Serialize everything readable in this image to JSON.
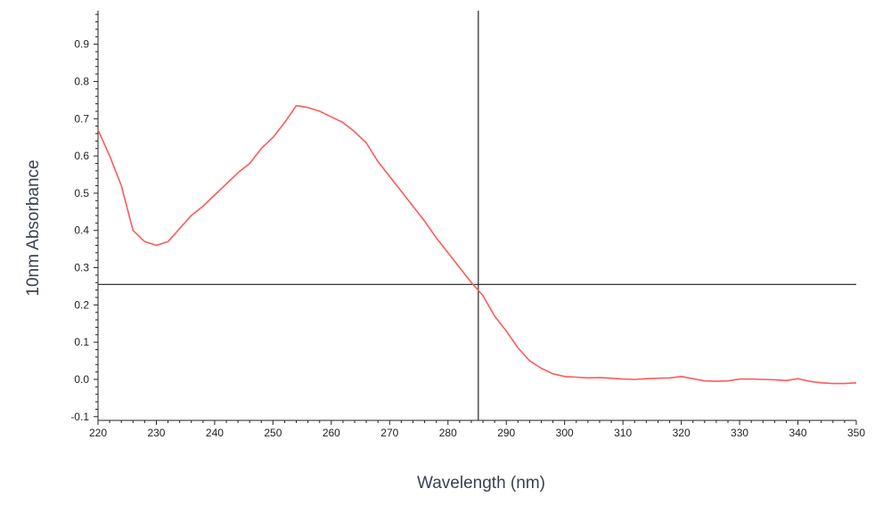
{
  "chart_data": {
    "type": "line",
    "xlabel": "Wavelength (nm)",
    "ylabel": "10nm Absorbance",
    "xlim": [
      220,
      350
    ],
    "ylim": [
      -0.11,
      0.99
    ],
    "x_ticks": [
      220,
      230,
      240,
      250,
      260,
      270,
      280,
      290,
      300,
      310,
      320,
      330,
      340,
      350
    ],
    "y_ticks": [
      -0.1,
      0.0,
      0.1,
      0.2,
      0.3,
      0.4,
      0.5,
      0.6,
      0.7,
      0.8,
      0.9
    ],
    "x_tick_labels": [
      "220",
      "230",
      "240",
      "250",
      "260",
      "270",
      "280",
      "290",
      "300",
      "310",
      "320",
      "330",
      "340",
      "350"
    ],
    "y_tick_labels": [
      "-0.1",
      "0.0",
      "0.1",
      "0.2",
      "0.3",
      "0.4",
      "0.5",
      "0.6",
      "0.7",
      "0.8",
      "0.9"
    ],
    "grid": false,
    "line_color": "#ff5a5a",
    "crosshair": {
      "x": 285.2,
      "y": 0.255
    },
    "series": [
      {
        "x": [
          220,
          222,
          224,
          226,
          228,
          230,
          232,
          234,
          236,
          238,
          240,
          242,
          244,
          246,
          248,
          250,
          252,
          254,
          256,
          258,
          260,
          262,
          264,
          266,
          268,
          270,
          272,
          274,
          276,
          278,
          280,
          282,
          284,
          286,
          288,
          290,
          292,
          294,
          296,
          298,
          300,
          302,
          304,
          306,
          308,
          310,
          312,
          314,
          316,
          318,
          320,
          322,
          324,
          326,
          328,
          330,
          332,
          334,
          336,
          338,
          340,
          342,
          344,
          346,
          348,
          350
        ],
        "y": [
          0.67,
          0.6,
          0.52,
          0.4,
          0.37,
          0.36,
          0.37,
          0.405,
          0.44,
          0.465,
          0.495,
          0.525,
          0.555,
          0.58,
          0.62,
          0.65,
          0.69,
          0.735,
          0.73,
          0.72,
          0.705,
          0.69,
          0.665,
          0.635,
          0.585,
          0.545,
          0.505,
          0.465,
          0.425,
          0.38,
          0.34,
          0.3,
          0.26,
          0.225,
          0.17,
          0.13,
          0.085,
          0.05,
          0.03,
          0.015,
          0.008,
          0.006,
          0.004,
          0.005,
          0.003,
          0.001,
          0.0,
          0.002,
          0.003,
          0.004,
          0.008,
          0.002,
          -0.004,
          -0.005,
          -0.004,
          0.001,
          0.001,
          0.0,
          -0.001,
          -0.003,
          0.002,
          -0.005,
          -0.009,
          -0.011,
          -0.011,
          -0.009
        ]
      }
    ]
  }
}
